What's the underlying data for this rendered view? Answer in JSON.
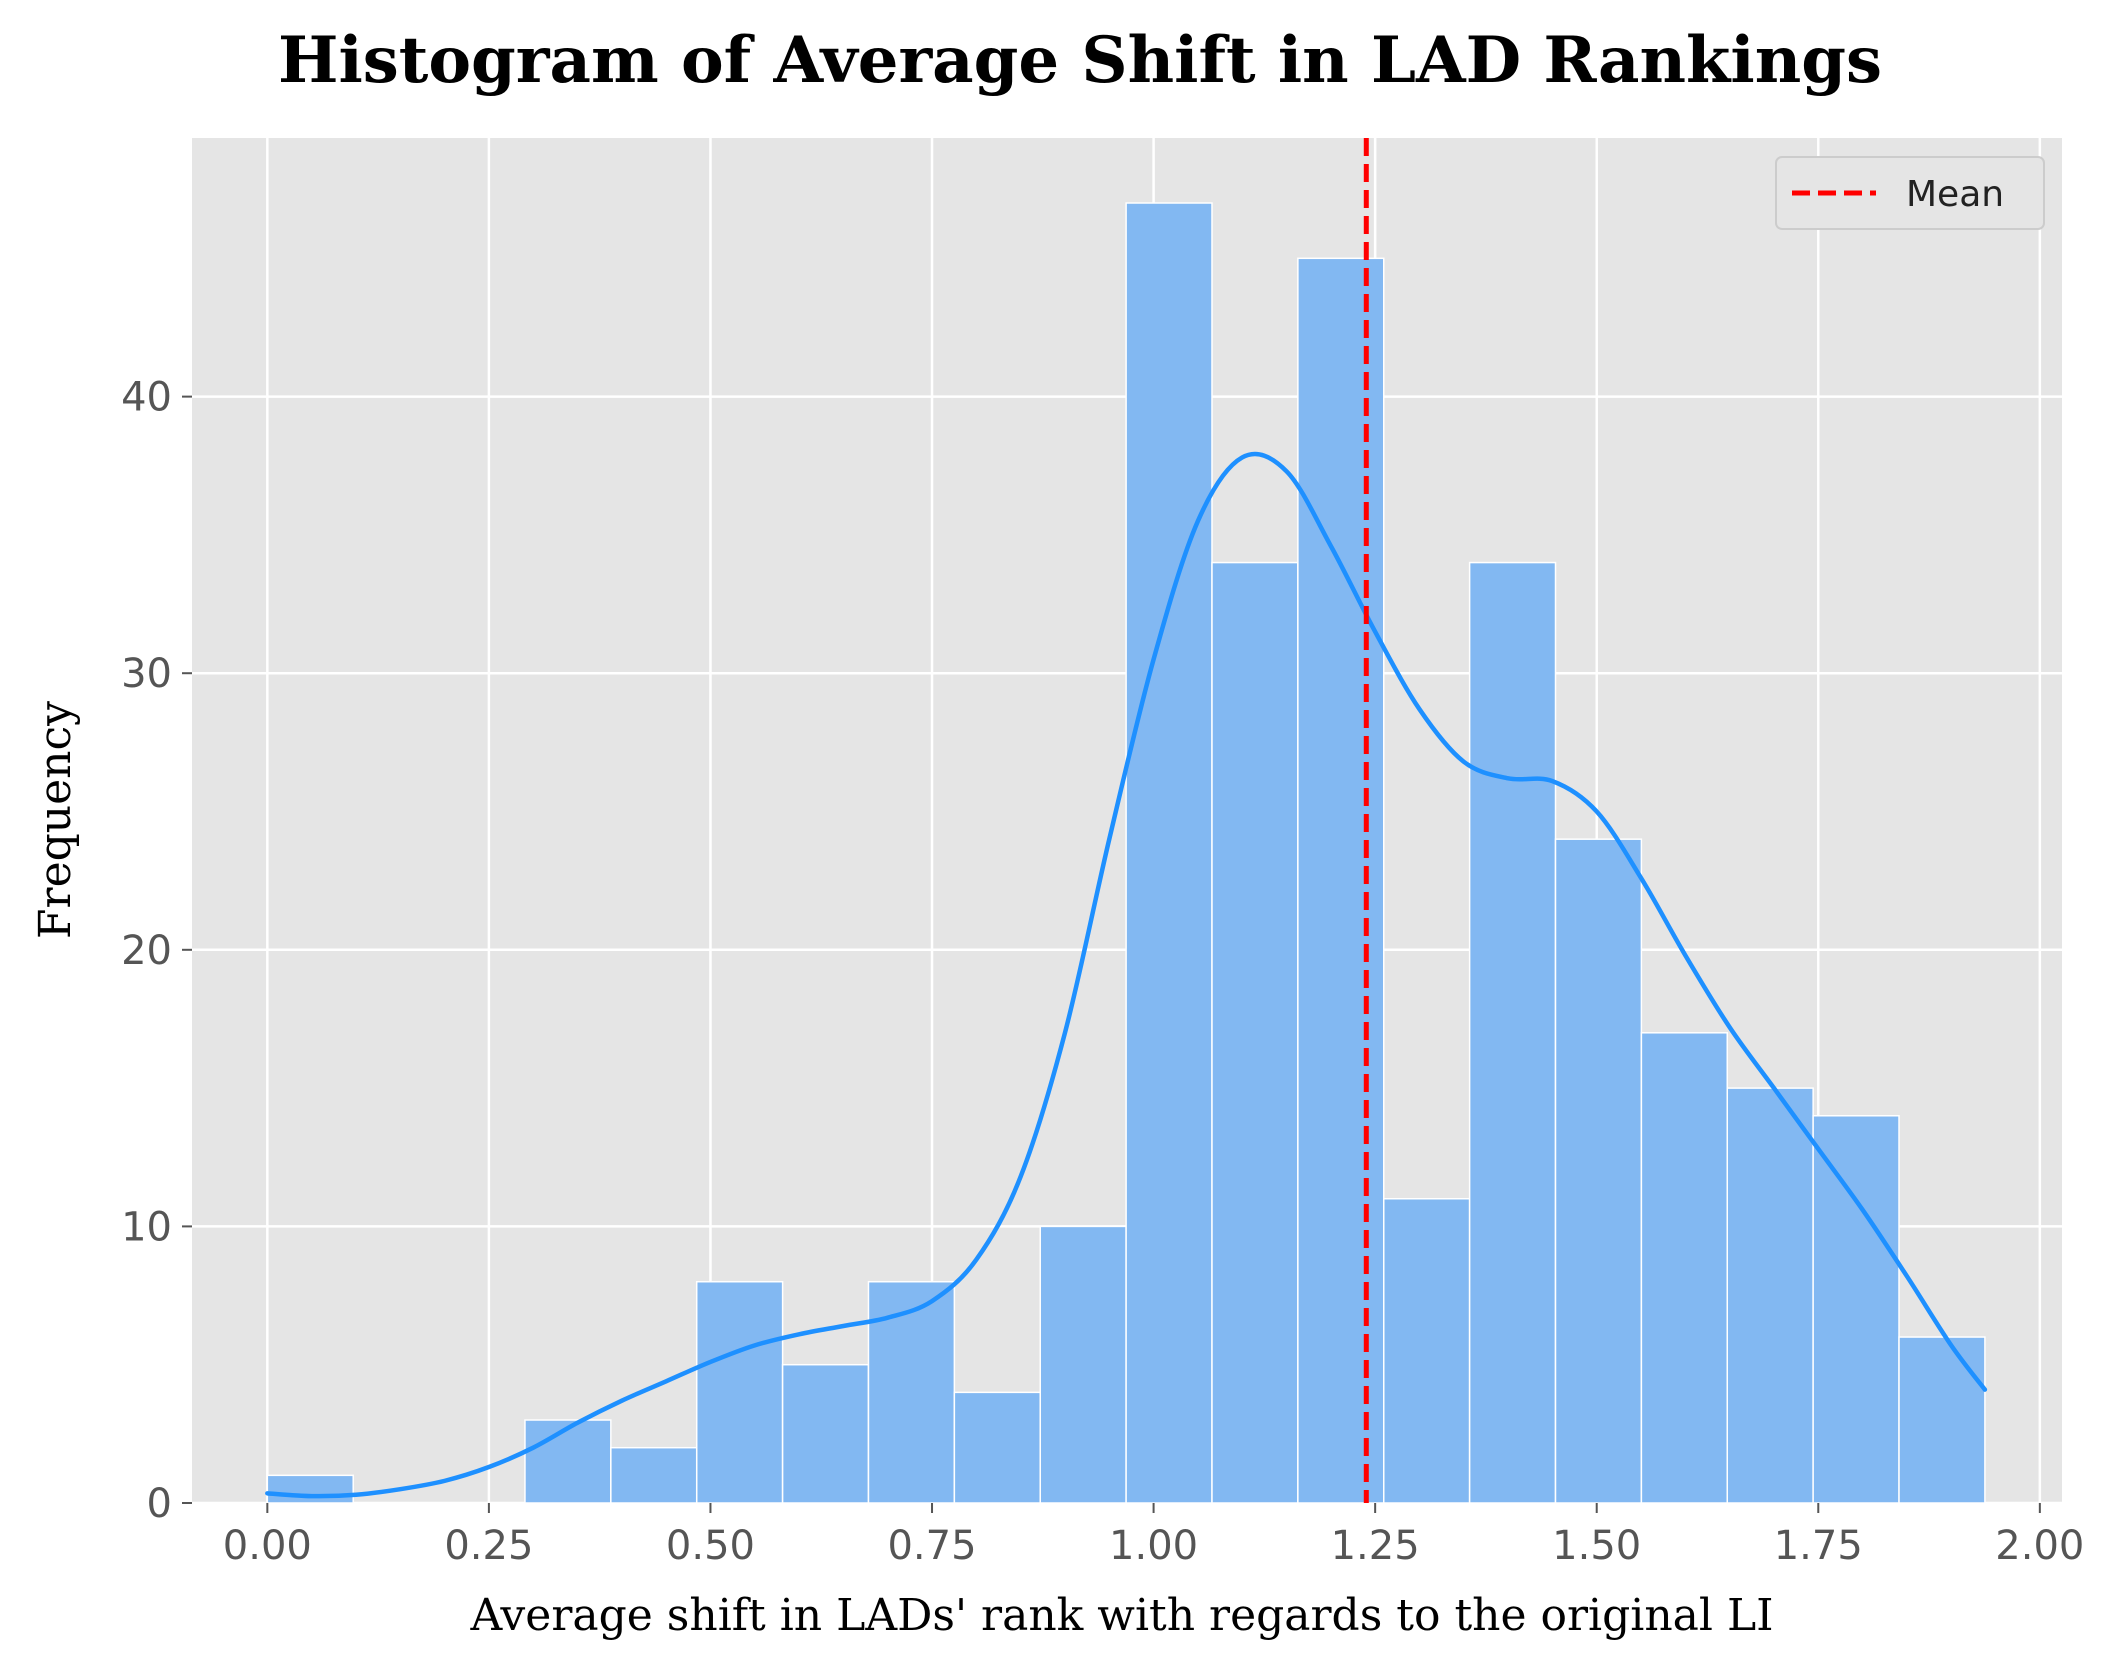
{
  "chart_data": {
    "type": "bar",
    "title": "Histogram of Average Shift in LAD Rankings",
    "xlabel": "Average shift in LADs' rank with regards to the original LI",
    "ylabel": "Frequency",
    "xlim": [
      -0.085,
      2.025
    ],
    "ylim": [
      0,
      49.35
    ],
    "x_ticks": [
      0.0,
      0.25,
      0.5,
      0.75,
      1.0,
      1.25,
      1.5,
      1.75,
      2.0
    ],
    "x_tick_labels": [
      "0.00",
      "0.25",
      "0.50",
      "0.75",
      "1.00",
      "1.25",
      "1.50",
      "1.75",
      "2.00"
    ],
    "y_ticks": [
      0,
      10,
      20,
      30,
      40
    ],
    "y_tick_labels": [
      "0",
      "10",
      "20",
      "30",
      "40"
    ],
    "bin_edges": [
      0.0,
      0.0969,
      0.1938,
      0.2907,
      0.3876,
      0.4845,
      0.5814,
      0.6783,
      0.7752,
      0.8721,
      0.969,
      1.0659,
      1.1628,
      1.2597,
      1.3566,
      1.4535,
      1.5504,
      1.6473,
      1.7442,
      1.8411,
      1.938
    ],
    "counts": [
      1,
      0,
      0,
      3,
      2,
      8,
      5,
      8,
      4,
      10,
      47,
      34,
      45,
      11,
      34,
      24,
      17,
      15,
      14,
      6
    ],
    "kde": {
      "x": [
        0.0,
        0.05,
        0.1,
        0.15,
        0.2,
        0.25,
        0.3,
        0.35,
        0.4,
        0.45,
        0.5,
        0.55,
        0.6,
        0.65,
        0.7,
        0.75,
        0.8,
        0.85,
        0.9,
        0.95,
        1.0,
        1.05,
        1.1,
        1.15,
        1.2,
        1.25,
        1.3,
        1.35,
        1.4,
        1.45,
        1.5,
        1.55,
        1.6,
        1.65,
        1.7,
        1.75,
        1.8,
        1.85,
        1.9,
        1.938
      ],
      "y": [
        0.35,
        0.25,
        0.3,
        0.5,
        0.8,
        1.3,
        2.0,
        2.9,
        3.7,
        4.4,
        5.1,
        5.7,
        6.1,
        6.4,
        6.7,
        7.3,
        8.8,
        11.8,
        17.0,
        24.0,
        30.5,
        35.5,
        37.8,
        37.3,
        34.6,
        31.5,
        28.7,
        26.8,
        26.2,
        26.1,
        25.0,
        22.6,
        19.8,
        17.2,
        15.0,
        12.8,
        10.6,
        8.2,
        5.7,
        4.1
      ]
    },
    "mean_line": 1.24,
    "legend": [
      "Mean"
    ],
    "legend_position": "top-right",
    "grid": true,
    "colors": {
      "bar_fill": "#82b8f2",
      "bar_edge": "#ffffff",
      "kde_line": "#1e90ff",
      "mean_line": "#ff0000",
      "plot_background": "#e5e5e5",
      "grid": "#ffffff"
    }
  }
}
